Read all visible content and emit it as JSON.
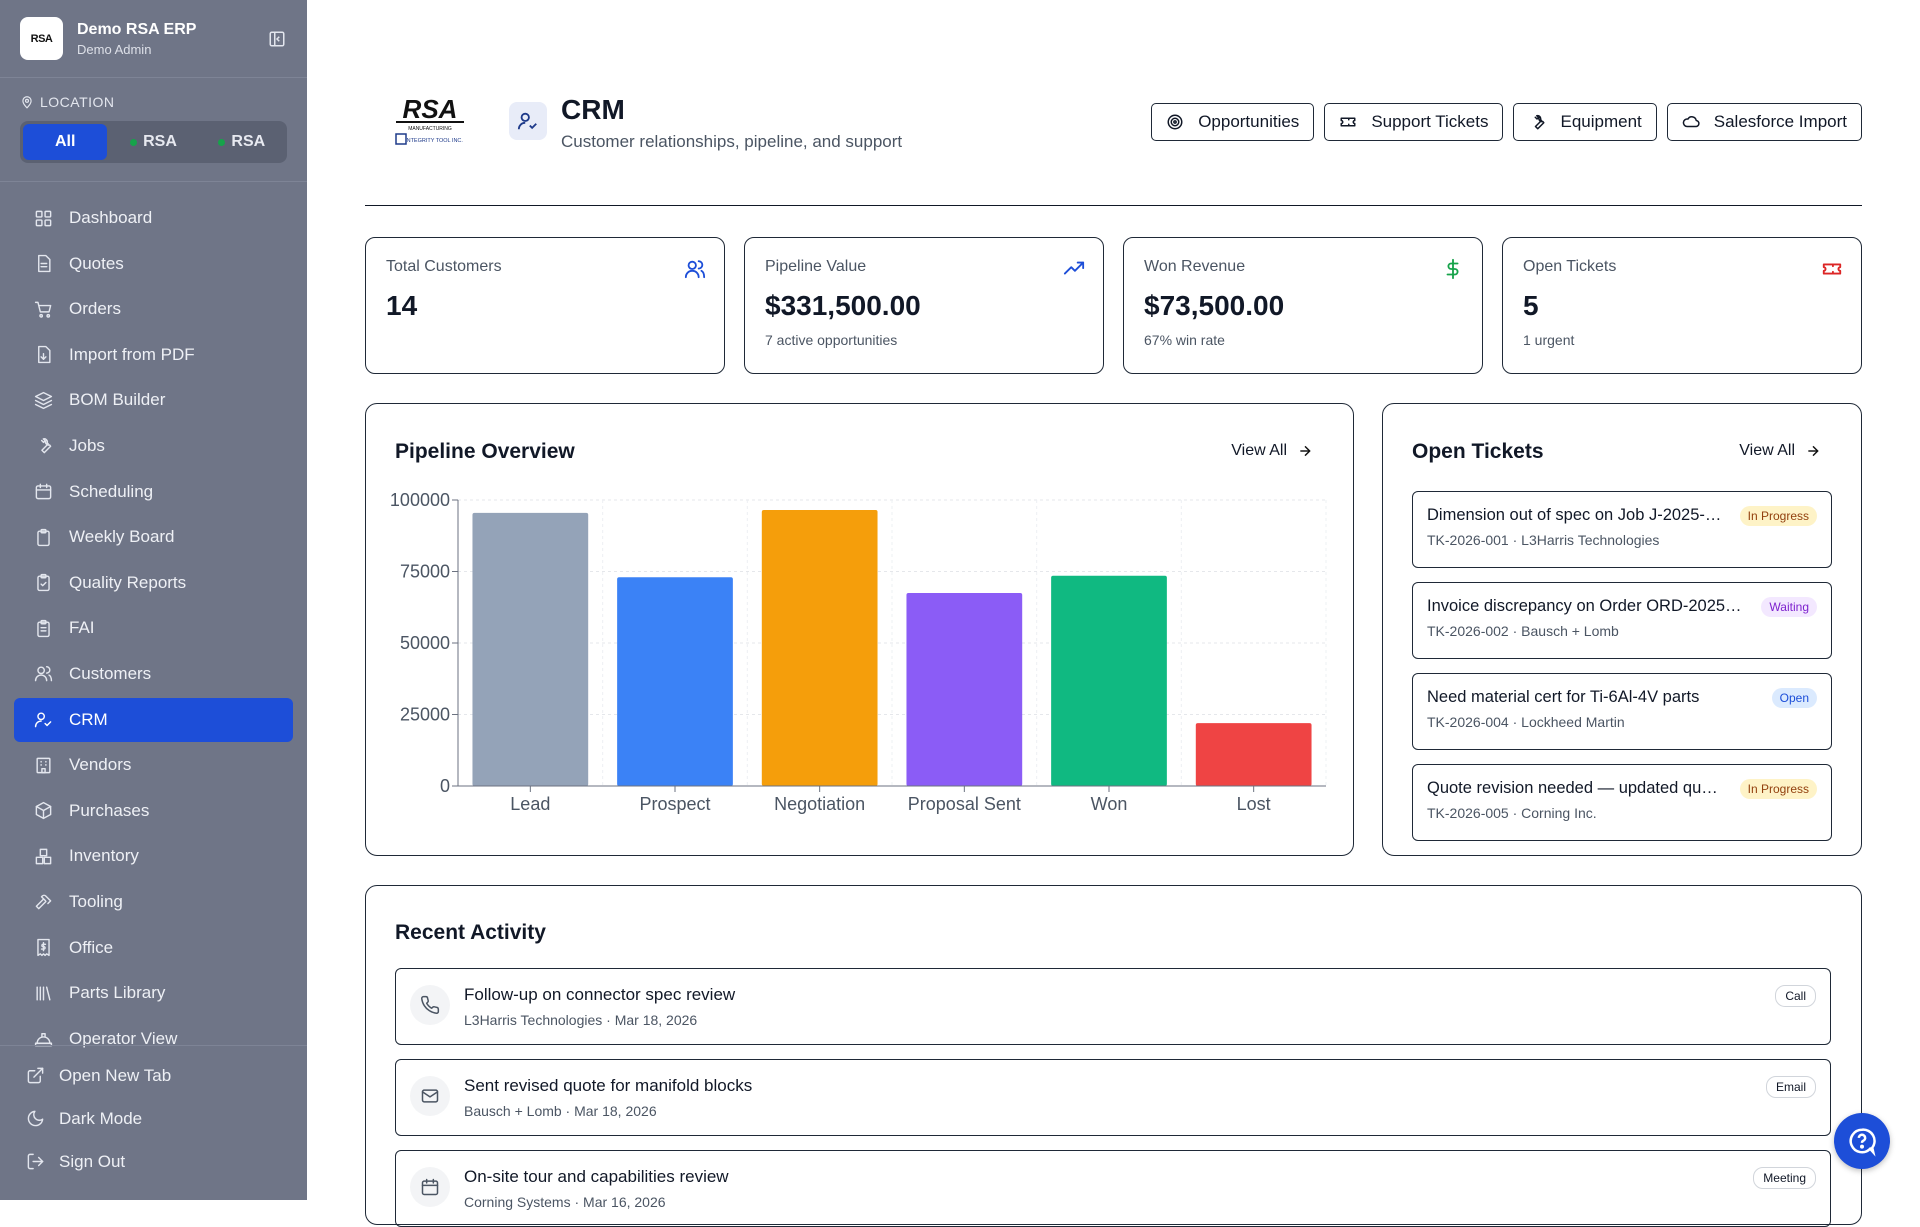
{
  "app": {
    "name": "Demo RSA ERP",
    "user": "Demo Admin",
    "logo_text": "RSA"
  },
  "location": {
    "label": "LOCATION",
    "options": [
      {
        "label": "All",
        "active": true
      },
      {
        "label": "RSA",
        "active": false
      },
      {
        "label": "RSA",
        "active": false
      }
    ]
  },
  "nav": [
    {
      "label": "Dashboard",
      "icon": "dashboard-icon"
    },
    {
      "label": "Quotes",
      "icon": "document-icon"
    },
    {
      "label": "Orders",
      "icon": "cart-icon"
    },
    {
      "label": "Import from PDF",
      "icon": "file-import-icon"
    },
    {
      "label": "BOM Builder",
      "icon": "layers-icon"
    },
    {
      "label": "Jobs",
      "icon": "wrench-icon"
    },
    {
      "label": "Scheduling",
      "icon": "calendar-icon"
    },
    {
      "label": "Weekly Board",
      "icon": "clipboard-icon"
    },
    {
      "label": "Quality Reports",
      "icon": "clipboard-check-icon"
    },
    {
      "label": "FAI",
      "icon": "clipboard-list-icon"
    },
    {
      "label": "Customers",
      "icon": "users-icon"
    },
    {
      "label": "CRM",
      "icon": "user-check-icon",
      "active": true
    },
    {
      "label": "Vendors",
      "icon": "building-icon"
    },
    {
      "label": "Purchases",
      "icon": "package-icon"
    },
    {
      "label": "Inventory",
      "icon": "boxes-icon"
    },
    {
      "label": "Tooling",
      "icon": "hammer-icon"
    },
    {
      "label": "Office",
      "icon": "receipt-icon"
    },
    {
      "label": "Parts Library",
      "icon": "library-icon"
    },
    {
      "label": "Operator View",
      "icon": "hard-hat-icon"
    }
  ],
  "footer": [
    {
      "label": "Open New Tab",
      "icon": "external-link-icon"
    },
    {
      "label": "Dark Mode",
      "icon": "moon-icon"
    },
    {
      "label": "Sign Out",
      "icon": "log-out-icon"
    }
  ],
  "page": {
    "title": "CRM",
    "subtitle": "Customer relationships, pipeline, and support"
  },
  "actions": [
    {
      "label": "Opportunities",
      "icon": "target-icon"
    },
    {
      "label": "Support Tickets",
      "icon": "ticket-icon"
    },
    {
      "label": "Equipment",
      "icon": "wrench-icon"
    },
    {
      "label": "Salesforce Import",
      "icon": "cloud-icon"
    }
  ],
  "stats": [
    {
      "label": "Total Customers",
      "value": "14",
      "sub": "",
      "icon": "users-icon",
      "color": "#1d4ed8"
    },
    {
      "label": "Pipeline Value",
      "value": "$331,500.00",
      "sub": "7 active opportunities",
      "icon": "trending-up-icon",
      "color": "#1d4ed8"
    },
    {
      "label": "Won Revenue",
      "value": "$73,500.00",
      "sub": "67% win rate",
      "icon": "dollar-icon",
      "color": "#16a34a"
    },
    {
      "label": "Open Tickets",
      "value": "5",
      "sub": "1 urgent",
      "icon": "ticket-icon",
      "color": "#dc2626"
    }
  ],
  "pipeline": {
    "title": "Pipeline Overview",
    "view_all": "View All"
  },
  "chart_data": {
    "type": "bar",
    "categories": [
      "Lead",
      "Prospect",
      "Negotiation",
      "Proposal Sent",
      "Won",
      "Lost"
    ],
    "values": [
      95500,
      73000,
      96500,
      67500,
      73500,
      22000
    ],
    "colors": [
      "#94a3b8",
      "#3b82f6",
      "#f59e0b",
      "#8b5cf6",
      "#10b981",
      "#ef4444"
    ],
    "yticks": [
      0,
      25000,
      50000,
      75000,
      100000
    ],
    "ylim": [
      0,
      100000
    ],
    "grid": true
  },
  "tickets": {
    "title": "Open Tickets",
    "view_all": "View All",
    "items": [
      {
        "title": "Dimension out of spec on Job J-2025-…",
        "meta": "TK-2026-001 · L3Harris Technologies",
        "status": "In Progress",
        "kind": "progress"
      },
      {
        "title": "Invoice discrepancy on Order ORD-2025…",
        "meta": "TK-2026-002 · Bausch + Lomb",
        "status": "Waiting",
        "kind": "waiting"
      },
      {
        "title": "Need material cert for Ti-6Al-4V parts",
        "meta": "TK-2026-004 · Lockheed Martin",
        "status": "Open",
        "kind": "open"
      },
      {
        "title": "Quote revision needed — updated qu…",
        "meta": "TK-2026-005 · Corning Inc.",
        "status": "In Progress",
        "kind": "progress"
      }
    ]
  },
  "activity": {
    "title": "Recent Activity",
    "items": [
      {
        "title": "Follow-up on connector spec review",
        "meta": "L3Harris Technologies · Mar 18, 2026",
        "type": "Call",
        "icon": "phone-icon"
      },
      {
        "title": "Sent revised quote for manifold blocks",
        "meta": "Bausch + Lomb · Mar 18, 2026",
        "type": "Email",
        "icon": "mail-icon"
      },
      {
        "title": "On-site tour and capabilities review",
        "meta": "Corning Systems · Mar 16, 2026",
        "type": "Meeting",
        "icon": "calendar-icon"
      }
    ]
  }
}
